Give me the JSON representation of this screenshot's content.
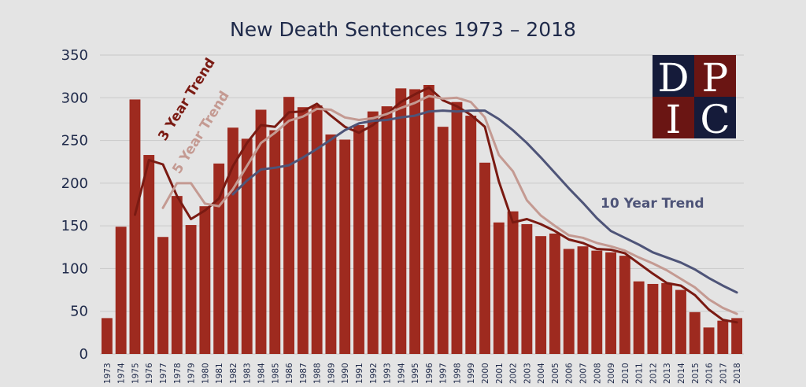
{
  "chart_data": {
    "type": "bar",
    "title": "New Death Sentences 1973 – 2018",
    "xlabel": "",
    "ylabel": "",
    "ylim": [
      0,
      350
    ],
    "yticks": [
      "0",
      "50",
      "100",
      "150",
      "200",
      "250",
      "300",
      "350"
    ],
    "grid": true,
    "categories": [
      "1973",
      "1974",
      "1975",
      "1976",
      "1977",
      "1978",
      "1979",
      "1980",
      "1981",
      "1982",
      "1983",
      "1984",
      "1985",
      "1986",
      "1987",
      "1988",
      "1989",
      "1990",
      "1991",
      "1992",
      "1993",
      "1994",
      "1995",
      "1996",
      "1997",
      "1998",
      "1999",
      "2000",
      "2001",
      "2002",
      "2003",
      "2004",
      "2005",
      "2006",
      "2007",
      "2008",
      "2009",
      "2010",
      "2011",
      "2012",
      "2013",
      "2014",
      "2015",
      "2016",
      "2017",
      "2018"
    ],
    "values": [
      42,
      149,
      298,
      233,
      137,
      185,
      151,
      173,
      223,
      265,
      252,
      286,
      262,
      301,
      289,
      291,
      257,
      251,
      268,
      284,
      290,
      311,
      310,
      315,
      266,
      295,
      279,
      224,
      154,
      167,
      152,
      138,
      141,
      123,
      126,
      121,
      119,
      115,
      85,
      82,
      83,
      75,
      49,
      31,
      39,
      42
    ],
    "bar_color": "#9e2a1f",
    "series": [
      {
        "name": "3 Year Trend",
        "type": "line",
        "color": "#7a1a12",
        "label_color": "#7a1a12",
        "values": [
          null,
          null,
          163,
          227,
          222,
          185,
          158,
          168,
          182,
          220,
          247,
          268,
          266,
          283,
          284,
          293,
          279,
          266,
          259,
          268,
          281,
          295,
          304,
          312,
          297,
          290,
          280,
          266,
          202,
          154,
          158,
          152,
          144,
          134,
          130,
          123,
          122,
          118,
          106,
          94,
          83,
          80,
          69,
          52,
          40,
          37
        ]
      },
      {
        "name": "5 Year Trend",
        "type": "line",
        "color": "#c49a92",
        "label_color": "#c49a92",
        "values": [
          null,
          null,
          null,
          null,
          171,
          200,
          200,
          176,
          173,
          193,
          220,
          247,
          259,
          273,
          278,
          287,
          286,
          277,
          274,
          276,
          281,
          288,
          294,
          302,
          299,
          300,
          295,
          277,
          233,
          214,
          180,
          162,
          150,
          139,
          136,
          130,
          126,
          121,
          113,
          106,
          98,
          88,
          78,
          64,
          54,
          47
        ]
      },
      {
        "name": "10 Year Trend",
        "type": "line",
        "color": "#4e5478",
        "label_color": "#4e5478",
        "values": [
          null,
          null,
          null,
          null,
          null,
          null,
          null,
          null,
          null,
          187,
          203,
          216,
          218,
          221,
          230,
          240,
          251,
          262,
          270,
          273,
          274,
          277,
          279,
          284,
          285,
          284,
          285,
          285,
          275,
          262,
          247,
          230,
          212,
          194,
          177,
          159,
          144,
          136,
          128,
          119,
          113,
          107,
          99,
          89,
          80,
          72
        ]
      }
    ]
  },
  "logo": {
    "letters": [
      "D",
      "P",
      "I",
      "C"
    ],
    "colors": {
      "dark": "#151b3a",
      "red": "#6a1513",
      "letter": "#ffffff"
    }
  }
}
